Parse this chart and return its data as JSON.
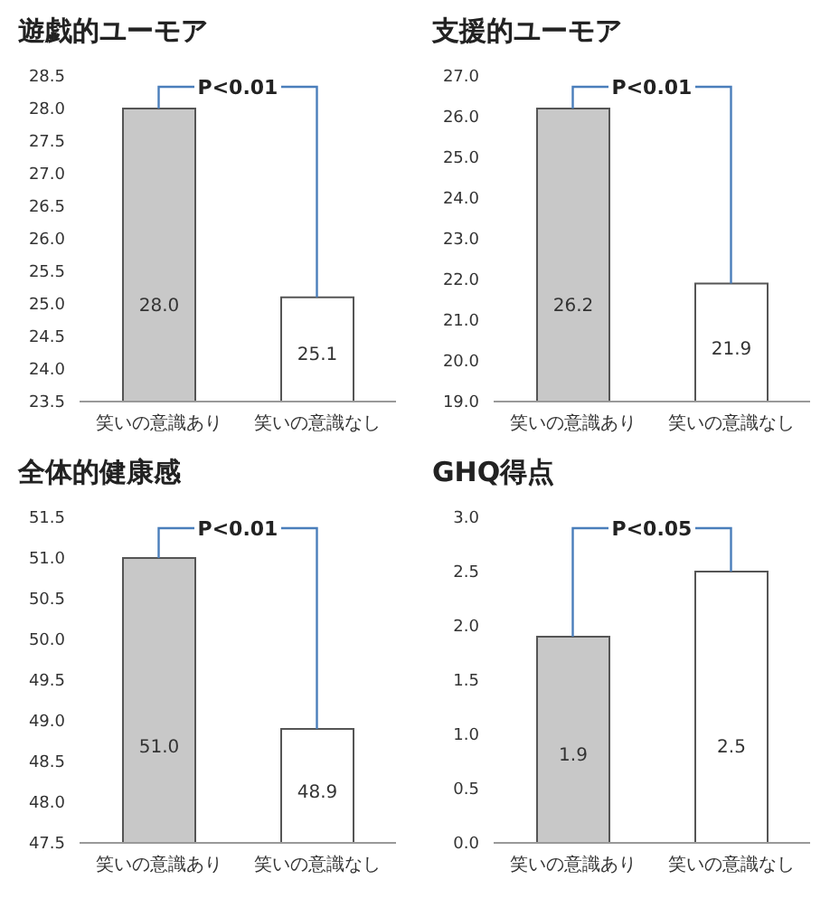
{
  "chart_data": [
    {
      "type": "bar",
      "title": "遊戯的ユーモア",
      "categories": [
        "笑いの意識あり",
        "笑いの意識なし"
      ],
      "values": [
        28.0,
        25.1
      ],
      "value_labels": [
        "28.0",
        "25.1"
      ],
      "colors": [
        "#c8c8c8",
        "#ffffff"
      ],
      "ylim": [
        23.5,
        28.5
      ],
      "yticks": [
        {
          "value": 23.5,
          "label": "23.5"
        },
        {
          "value": 24,
          "label": "24.0"
        },
        {
          "value": 24.5,
          "label": "24.5"
        },
        {
          "value": 25,
          "label": "25.0"
        },
        {
          "value": 25.5,
          "label": "25.5"
        },
        {
          "value": 26,
          "label": "26.0"
        },
        {
          "value": 26.5,
          "label": "26.5"
        },
        {
          "value": 27,
          "label": "27.0"
        },
        {
          "value": 27.5,
          "label": "27.5"
        },
        {
          "value": 28,
          "label": "28.0"
        },
        {
          "value": 28.5,
          "label": "28.5"
        }
      ],
      "annotations": [
        "P<0.01"
      ]
    },
    {
      "type": "bar",
      "title": "支援的ユーモア",
      "categories": [
        "笑いの意識あり",
        "笑いの意識なし"
      ],
      "values": [
        26.2,
        21.9
      ],
      "value_labels": [
        "26.2",
        "21.9"
      ],
      "colors": [
        "#c8c8c8",
        "#ffffff"
      ],
      "ylim": [
        19,
        27
      ],
      "yticks": [
        {
          "value": 19,
          "label": "19.0"
        },
        {
          "value": 20,
          "label": "20.0"
        },
        {
          "value": 21,
          "label": "21.0"
        },
        {
          "value": 22,
          "label": "22.0"
        },
        {
          "value": 23,
          "label": "23.0"
        },
        {
          "value": 24,
          "label": "24.0"
        },
        {
          "value": 25,
          "label": "25.0"
        },
        {
          "value": 26,
          "label": "26.0"
        },
        {
          "value": 27,
          "label": "27.0"
        }
      ],
      "annotations": [
        "P<0.01"
      ]
    },
    {
      "type": "bar",
      "title": "全体的健康感",
      "categories": [
        "笑いの意識あり",
        "笑いの意識なし"
      ],
      "values": [
        51.0,
        48.9
      ],
      "value_labels": [
        "51.0",
        "48.9"
      ],
      "colors": [
        "#c8c8c8",
        "#ffffff"
      ],
      "ylim": [
        47.5,
        51.5
      ],
      "yticks": [
        {
          "value": 47.5,
          "label": "47.5"
        },
        {
          "value": 48,
          "label": "48.0"
        },
        {
          "value": 48.5,
          "label": "48.5"
        },
        {
          "value": 49,
          "label": "49.0"
        },
        {
          "value": 49.5,
          "label": "49.5"
        },
        {
          "value": 50,
          "label": "50.0"
        },
        {
          "value": 50.5,
          "label": "50.5"
        },
        {
          "value": 51,
          "label": "51.0"
        },
        {
          "value": 51.5,
          "label": "51.5"
        }
      ],
      "annotations": [
        "P<0.01"
      ]
    },
    {
      "type": "bar",
      "title": "GHQ得点",
      "categories": [
        "笑いの意識あり",
        "笑いの意識なし"
      ],
      "values": [
        1.9,
        2.5
      ],
      "value_labels": [
        "1.9",
        "2.5"
      ],
      "colors": [
        "#c8c8c8",
        "#ffffff"
      ],
      "ylim": [
        0,
        3
      ],
      "yticks": [
        {
          "value": 0,
          "label": "0.0"
        },
        {
          "value": 0.5,
          "label": "0.5"
        },
        {
          "value": 1,
          "label": "1.0"
        },
        {
          "value": 1.5,
          "label": "1.5"
        },
        {
          "value": 2,
          "label": "2.0"
        },
        {
          "value": 2.5,
          "label": "2.5"
        },
        {
          "value": 3,
          "label": "3.0"
        }
      ],
      "annotations": [
        "P<0.05"
      ]
    }
  ]
}
